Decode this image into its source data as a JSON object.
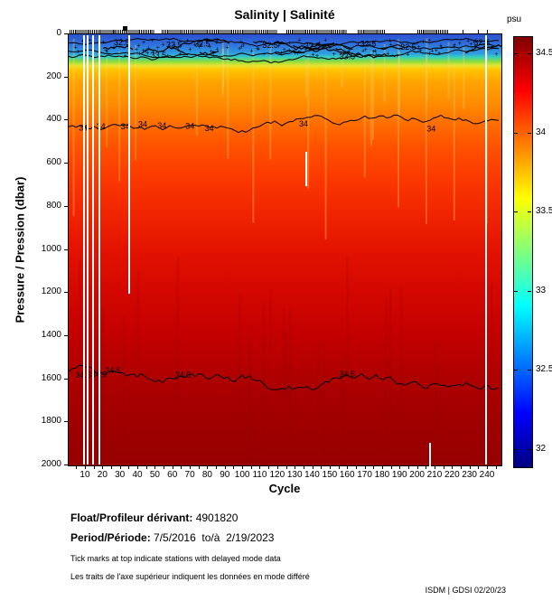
{
  "footer": {
    "float_label": "Float/Profileur dérivant:",
    "float_value": "4901820",
    "period_label": "Period/Période:",
    "period_value": "7/5/2016  to/à  2/19/2023",
    "note_en": "Tick marks at top indicate stations with delayed mode data",
    "note_fr": "Les traits de l'axe supérieur indiquent les données en mode différé",
    "credit": "ISDM | GDSI 02/20/23"
  },
  "chart_data": {
    "type": "heatmap",
    "title": "Salinity | Salinité",
    "xlabel": "Cycle",
    "ylabel": "Pressure / Pression (dbar)",
    "colorbar_label": "psu",
    "x_axis": {
      "range_cycles": [
        1,
        248
      ],
      "tick_labels": [
        10,
        20,
        30,
        40,
        50,
        60,
        70,
        80,
        90,
        100,
        110,
        120,
        130,
        140,
        150,
        160,
        170,
        180,
        190,
        200,
        210,
        220,
        230,
        240
      ],
      "minor_tick_step": 5
    },
    "y_axis": {
      "range_dbar": [
        0,
        2000
      ],
      "tick_labels": [
        0,
        200,
        400,
        600,
        800,
        1000,
        1200,
        1400,
        1600,
        1800,
        2000
      ]
    },
    "colorbar": {
      "range_psu": [
        31.89,
        34.61
      ],
      "tick_values": [
        34.5,
        34,
        33.5,
        33,
        32.5,
        32
      ],
      "palette": "jet",
      "palette_stops_top_to_bottom": [
        "#800000",
        "#ff0000",
        "#ffff00",
        "#00ffff",
        "#0000ff",
        "#000080"
      ]
    },
    "depth_salinity_profile": [
      {
        "depth_dbar": 0,
        "psu": 32.3
      },
      {
        "depth_dbar": 50,
        "psu": 32.5
      },
      {
        "depth_dbar": 100,
        "psu": 33.2
      },
      {
        "depth_dbar": 150,
        "psu": 33.6
      },
      {
        "depth_dbar": 250,
        "psu": 33.8
      },
      {
        "depth_dbar": 430,
        "psu": 34.0
      },
      {
        "depth_dbar": 800,
        "psu": 34.2
      },
      {
        "depth_dbar": 1200,
        "psu": 34.35
      },
      {
        "depth_dbar": 1565,
        "psu": 34.5
      },
      {
        "depth_dbar": 2000,
        "psu": 34.55
      }
    ],
    "depth_color_stops": [
      {
        "depth": 0,
        "color": "#2a52cc"
      },
      {
        "depth": 45,
        "color": "#2f6fdd"
      },
      {
        "depth": 90,
        "color": "#2f9fe0"
      },
      {
        "depth": 105,
        "color": "#35cfc0"
      },
      {
        "depth": 125,
        "color": "#86dc3f"
      },
      {
        "depth": 145,
        "color": "#e8e430"
      },
      {
        "depth": 165,
        "color": "#ffc400"
      },
      {
        "depth": 220,
        "color": "#ffa400"
      },
      {
        "depth": 320,
        "color": "#ff8c00"
      },
      {
        "depth": 420,
        "color": "#ff6c00"
      },
      {
        "depth": 520,
        "color": "#ff5200"
      },
      {
        "depth": 660,
        "color": "#fb3a00"
      },
      {
        "depth": 820,
        "color": "#f12600"
      },
      {
        "depth": 1000,
        "color": "#e31300"
      },
      {
        "depth": 1200,
        "color": "#d30700"
      },
      {
        "depth": 1400,
        "color": "#c30000"
      },
      {
        "depth": 1600,
        "color": "#ae0000"
      },
      {
        "depth": 1800,
        "color": "#a00000"
      },
      {
        "depth": 2000,
        "color": "#960000"
      }
    ],
    "contours": [
      {
        "psu": "32.5",
        "mean_depth_dbar": 45,
        "wiggle": 3,
        "labels_at_cycles": [
          26,
          56,
          72,
          111,
          135,
          167,
          190,
          232
        ]
      },
      {
        "psu": "33",
        "mean_depth_dbar": 75,
        "wiggle": 3.5,
        "labels_at_cycles": []
      },
      {
        "psu": "33.5",
        "mean_depth_dbar": 102,
        "wiggle": 4,
        "labels_at_cycles": [
          47,
          155
        ]
      },
      {
        "psu": "34",
        "mean_depth_dbar": 430,
        "wiggle": 6,
        "labels_at_cycles": [
          6,
          16,
          30,
          40,
          51,
          67,
          78,
          132,
          205
        ]
      },
      {
        "psu": "34.5",
        "mean_depth_dbar": 1565,
        "wiggle": 9,
        "labels_at_cycles": [
          4,
          13,
          21,
          61,
          155
        ]
      }
    ],
    "missing_profile_cycles": [
      9,
      11,
      14,
      18,
      239
    ],
    "partial_missing_segments": [
      {
        "cycle": 35,
        "from_dbar": 0,
        "to_dbar": 1200
      },
      {
        "cycle": 136,
        "from_dbar": 540,
        "to_dbar": 700
      },
      {
        "cycle": 207,
        "from_dbar": 1890,
        "to_dbar": 2000
      }
    ],
    "delayed_mode_tick_ranges_cycles": [
      [
        1,
        50
      ],
      [
        54,
        120
      ],
      [
        125,
        160
      ],
      [
        166,
        182
      ],
      [
        200,
        218
      ]
    ],
    "delayed_mode_single_ticks_cycles": [
      226,
      235,
      240
    ]
  }
}
